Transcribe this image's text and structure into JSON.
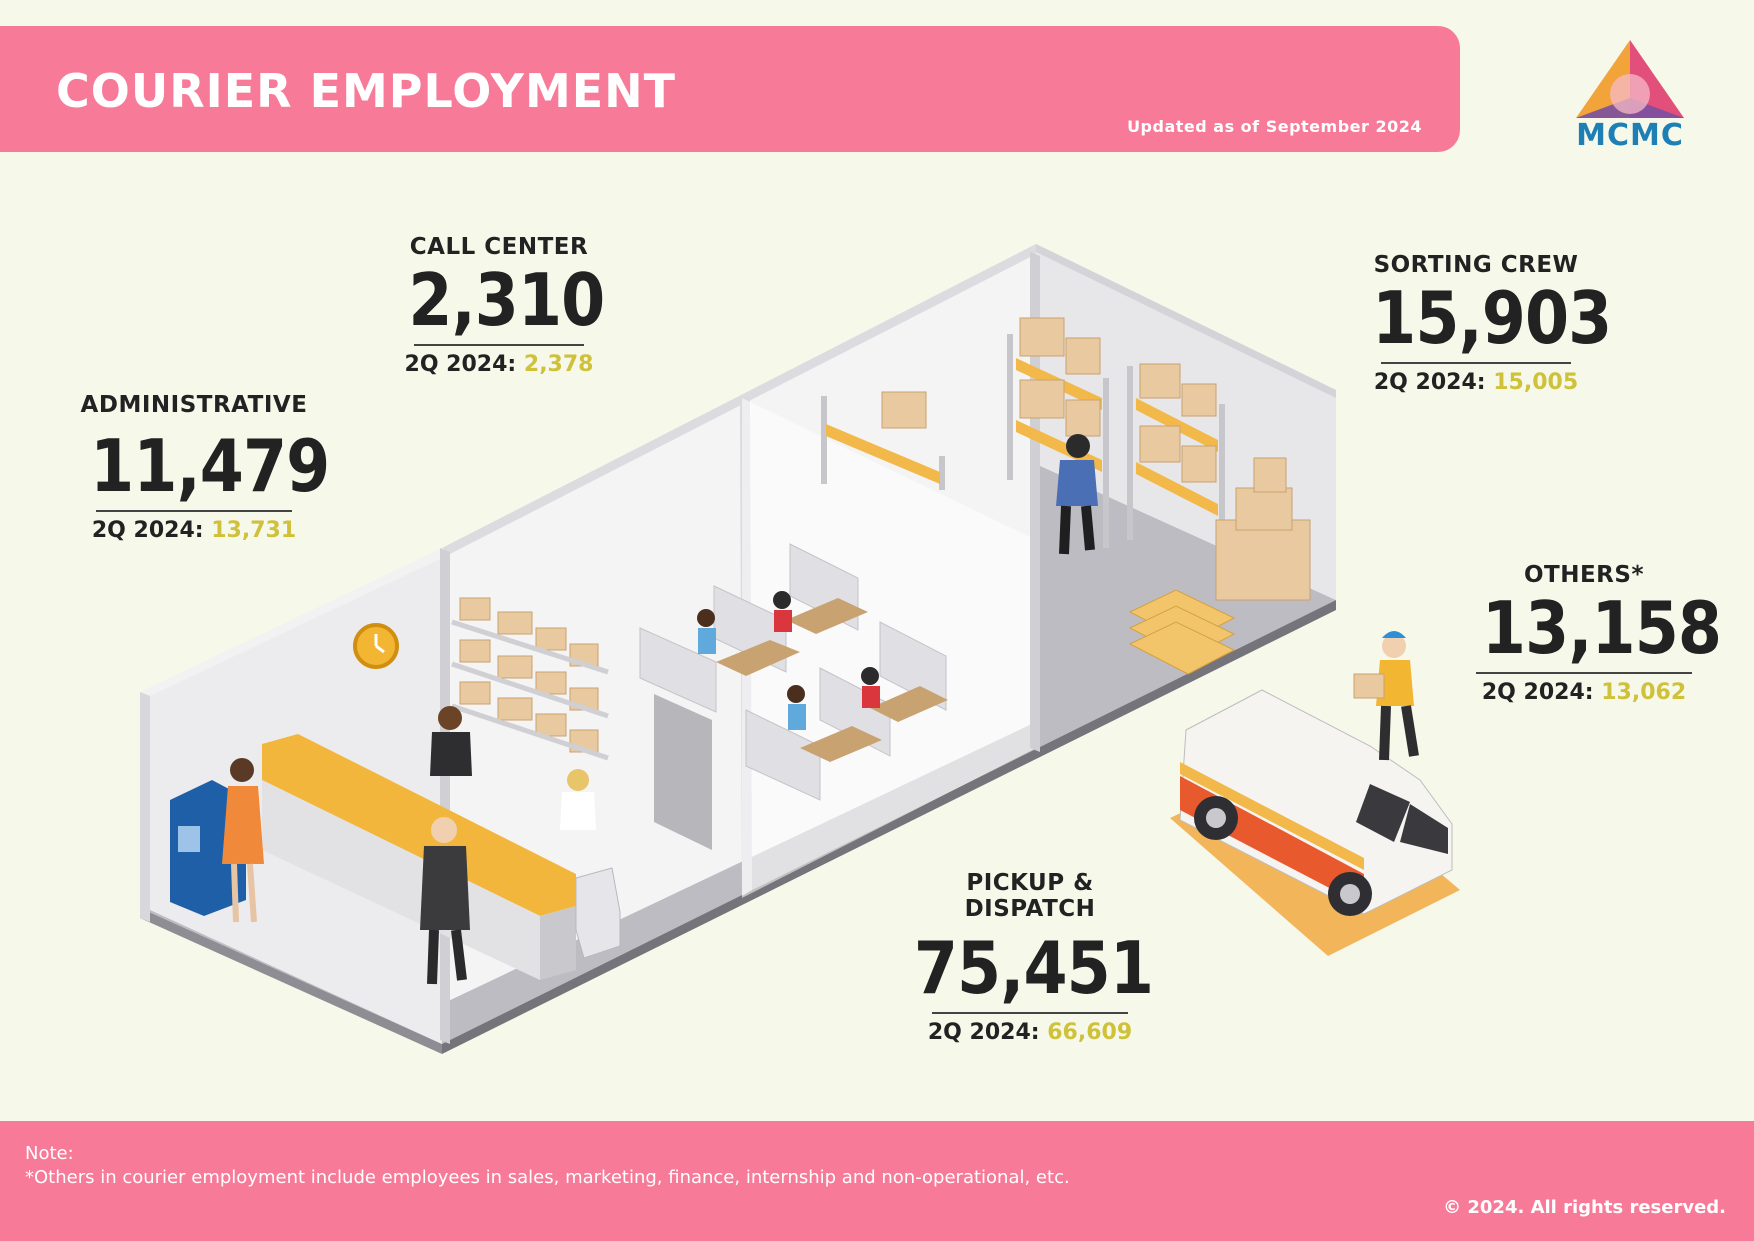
{
  "header": {
    "title": "COURIER EMPLOYMENT",
    "updated": "Updated as of September 2024"
  },
  "logo": {
    "text": "MCMC",
    "colors": [
      "#f2a33a",
      "#e24f7a",
      "#7a4fa0",
      "#1e7fb5"
    ]
  },
  "categories": [
    {
      "key": "call_center",
      "label": "CALL CENTER",
      "value": "2,310",
      "prev_label": "2Q 2024:",
      "prev_value": "2,378"
    },
    {
      "key": "administrative",
      "label": "ADMINISTRATIVE",
      "value": "11,479",
      "prev_label": "2Q 2024:",
      "prev_value": "13,731"
    },
    {
      "key": "sorting_crew",
      "label": "SORTING CREW",
      "value": "15,903",
      "prev_label": "2Q 2024:",
      "prev_value": "15,005"
    },
    {
      "key": "others",
      "label": "OTHERS*",
      "value": "13,158",
      "prev_label": "2Q 2024:",
      "prev_value": "13,062"
    },
    {
      "key": "pickup_dispatch",
      "label": "PICKUP & DISPATCH",
      "value": "75,451",
      "prev_label": "2Q 2024:",
      "prev_value": "66,609"
    }
  ],
  "footer": {
    "note_title": "Note:",
    "note_text": "*Others in courier employment include employees in sales, marketing, finance, internship and non-operational, etc.",
    "copyright": "© 2024. All rights reserved."
  },
  "colors": {
    "accent_pink": "#f77b98",
    "highlight_yellow": "#cfc13a",
    "background": "#f6f8ea"
  }
}
